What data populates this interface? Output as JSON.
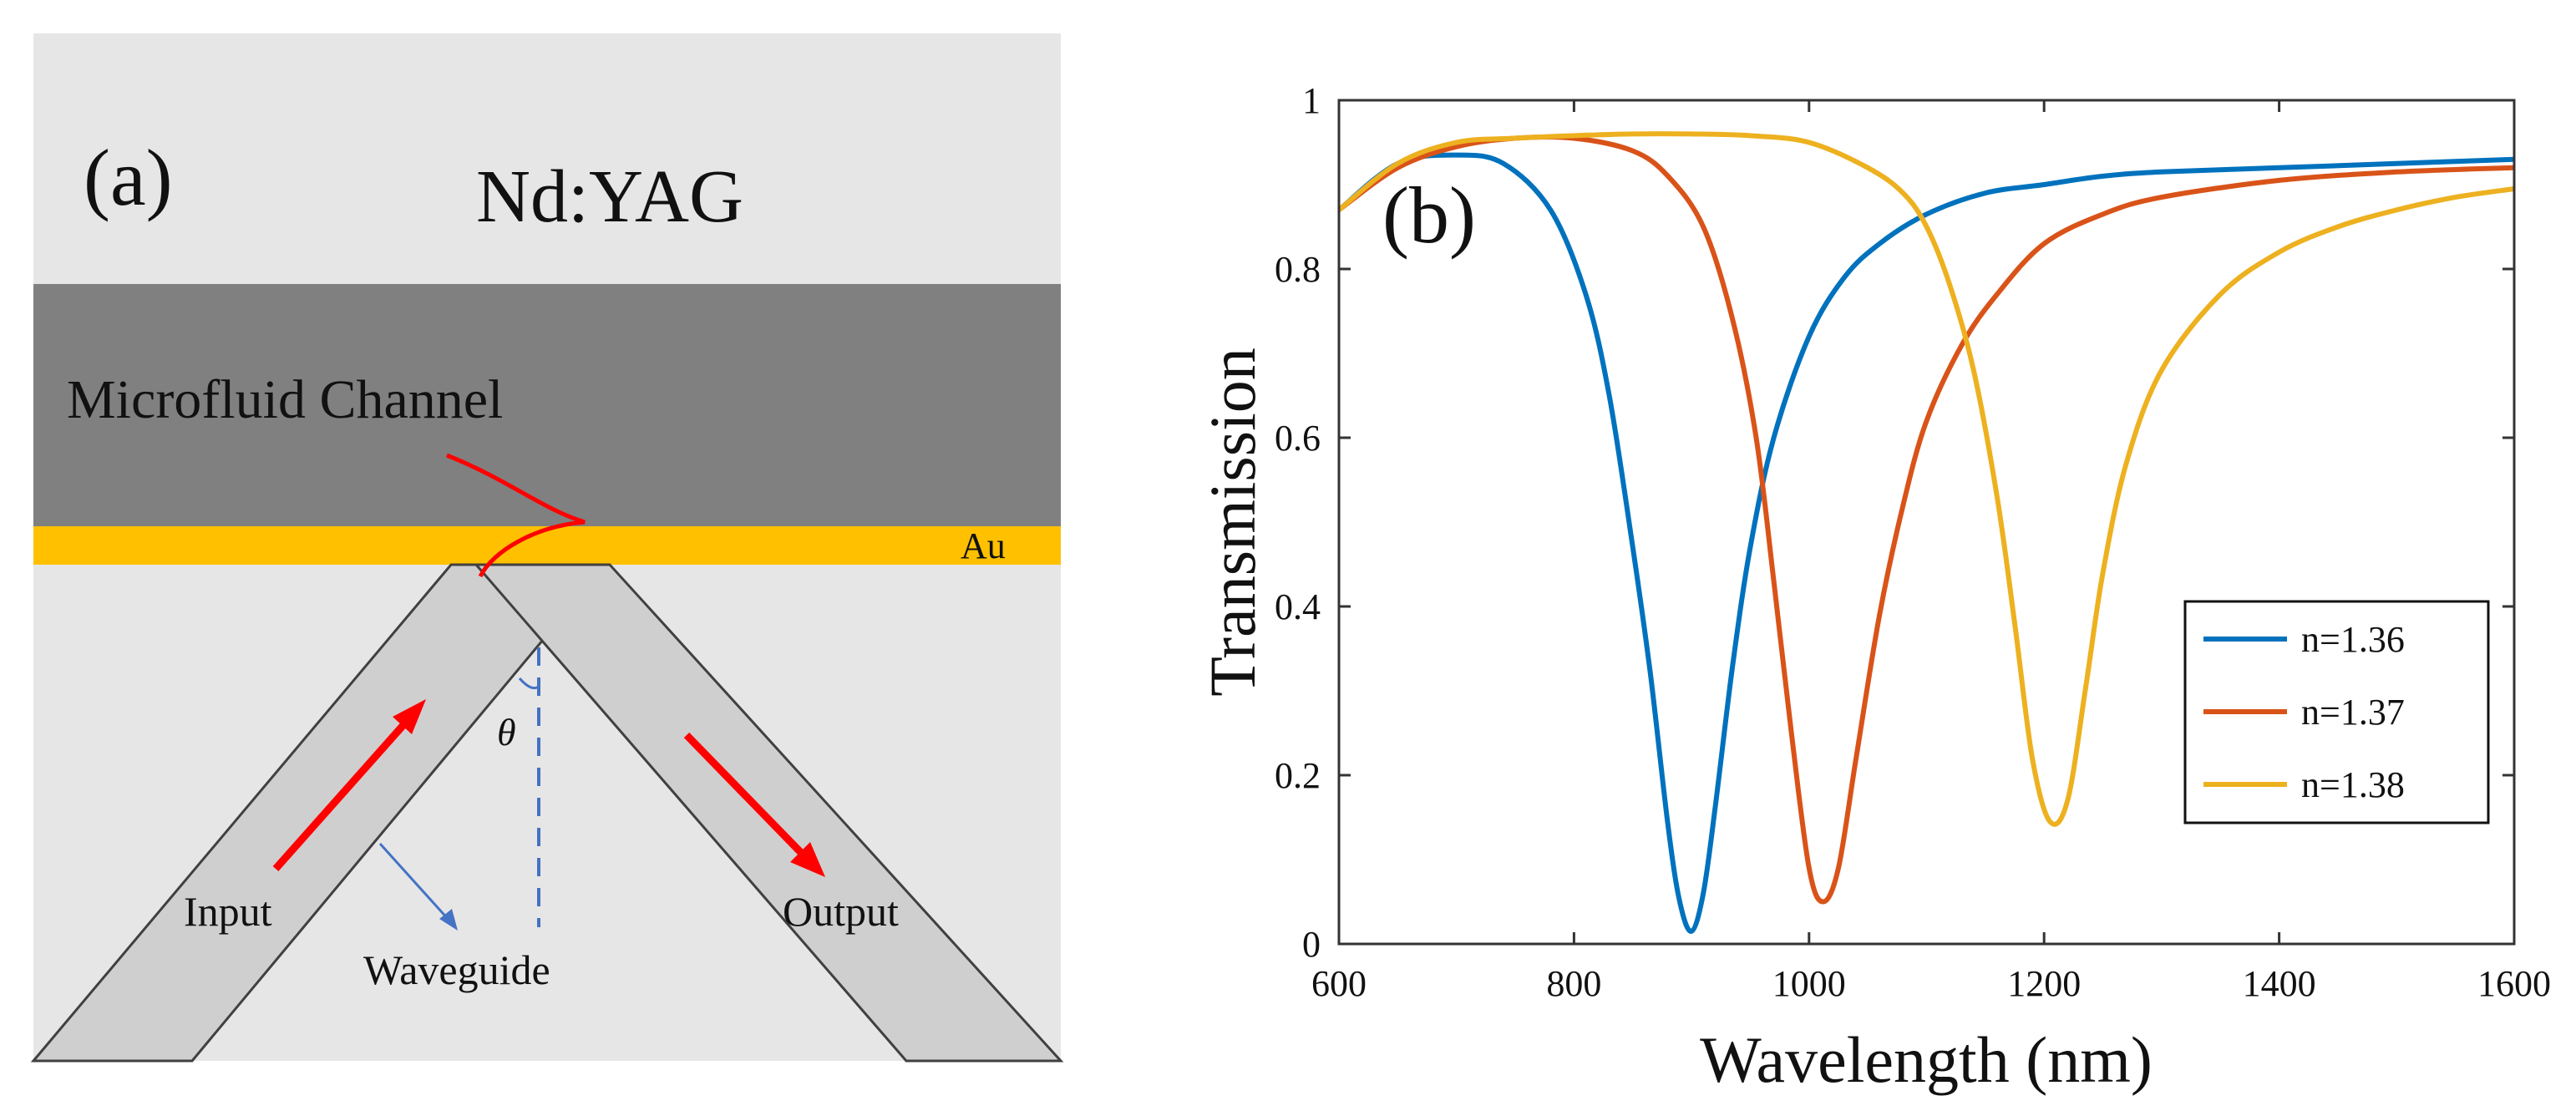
{
  "panel_a": {
    "label": "(a)",
    "top_layer_label": "Nd:YAG",
    "channel_label": "Microfluid Channel",
    "metal_label": "Au",
    "angle_label": "θ",
    "input_label": "Input",
    "output_label": "Output",
    "waveguide_label": "Waveguide",
    "colors": {
      "background": "#e6e6e6",
      "channel": "#808080",
      "gold": "#ffc000",
      "waveguide": "#cfcfcf",
      "arrow": "#ff0000",
      "pointer": "#4472c4"
    }
  },
  "panel_b": {
    "label": "(b)"
  },
  "chart_data": {
    "type": "line",
    "title": "",
    "xlabel": "Wavelength (nm)",
    "ylabel": "Transmission",
    "xlim": [
      600,
      1600
    ],
    "ylim": [
      0,
      1
    ],
    "xticks": [
      600,
      800,
      1000,
      1200,
      1400,
      1600
    ],
    "yticks": [
      0,
      0.2,
      0.4,
      0.6,
      0.8,
      1
    ],
    "ytick_labels": [
      "0",
      "0.2",
      "0.4",
      "0.6",
      "0.8",
      "1"
    ],
    "grid": false,
    "legend_position": "lower-right",
    "series": [
      {
        "name": "n=1.36",
        "color": "#0072bd",
        "x": [
          600,
          650,
          700,
          740,
          780,
          810,
          830,
          850,
          865,
          880,
          890,
          900,
          910,
          920,
          935,
          950,
          970,
          1000,
          1030,
          1060,
          1100,
          1150,
          1200,
          1250,
          1300,
          1400,
          1500,
          1600
        ],
        "y": [
          0.87,
          0.925,
          0.935,
          0.925,
          0.87,
          0.77,
          0.65,
          0.47,
          0.32,
          0.14,
          0.05,
          0.015,
          0.06,
          0.16,
          0.33,
          0.47,
          0.6,
          0.72,
          0.79,
          0.83,
          0.865,
          0.89,
          0.9,
          0.91,
          0.915,
          0.92,
          0.925,
          0.93
        ]
      },
      {
        "name": "n=1.37",
        "color": "#d95319",
        "x": [
          600,
          650,
          700,
          750,
          800,
          850,
          880,
          910,
          935,
          955,
          970,
          985,
          1000,
          1012,
          1025,
          1040,
          1060,
          1080,
          1100,
          1130,
          1160,
          1200,
          1250,
          1300,
          1400,
          1500,
          1600
        ],
        "y": [
          0.87,
          0.92,
          0.945,
          0.955,
          0.955,
          0.94,
          0.91,
          0.85,
          0.74,
          0.6,
          0.43,
          0.25,
          0.09,
          0.05,
          0.09,
          0.22,
          0.39,
          0.52,
          0.62,
          0.71,
          0.77,
          0.83,
          0.865,
          0.885,
          0.905,
          0.915,
          0.92
        ]
      },
      {
        "name": "n=1.38",
        "color": "#edb120",
        "x": [
          600,
          650,
          700,
          750,
          800,
          850,
          900,
          950,
          1000,
          1050,
          1080,
          1100,
          1120,
          1140,
          1160,
          1175,
          1190,
          1205,
          1220,
          1235,
          1250,
          1270,
          1300,
          1350,
          1400,
          1450,
          1500,
          1550,
          1600
        ],
        "y": [
          0.87,
          0.925,
          0.95,
          0.955,
          0.958,
          0.96,
          0.96,
          0.958,
          0.95,
          0.92,
          0.89,
          0.85,
          0.78,
          0.68,
          0.53,
          0.38,
          0.22,
          0.145,
          0.17,
          0.3,
          0.44,
          0.57,
          0.68,
          0.77,
          0.82,
          0.85,
          0.87,
          0.885,
          0.895
        ]
      }
    ]
  }
}
